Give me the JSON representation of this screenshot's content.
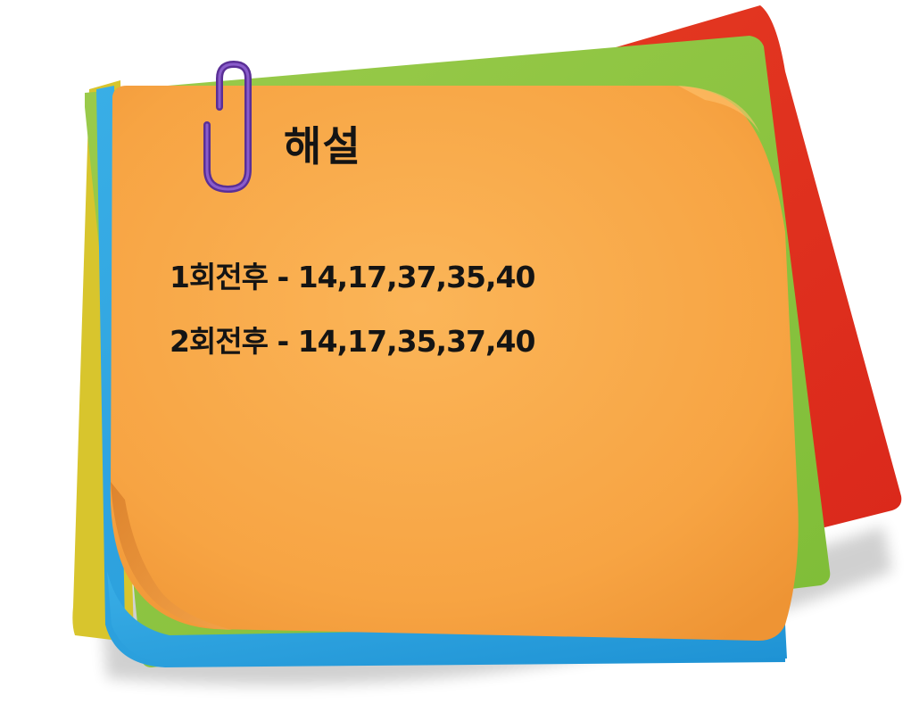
{
  "note": {
    "title": "해설",
    "lines": [
      "1회전후 - 14,17,37,35,40",
      "2회전후 - 14,17,35,37,40"
    ]
  },
  "icons": {
    "paperclip": "paperclip-icon"
  },
  "colors": {
    "top_note": "#F9A84B",
    "green_note": "#8BC63F",
    "red_note": "#E8321E",
    "blue_note": "#2AA3E0",
    "yellow_note": "#D9C62E",
    "paperclip": "#6A3FA8",
    "text": "#141414"
  }
}
